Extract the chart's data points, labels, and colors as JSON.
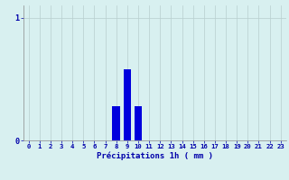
{
  "hours": [
    0,
    1,
    2,
    3,
    4,
    5,
    6,
    7,
    8,
    9,
    10,
    11,
    12,
    13,
    14,
    15,
    16,
    17,
    18,
    19,
    20,
    21,
    22,
    23
  ],
  "values": [
    0,
    0,
    0,
    0,
    0,
    0,
    0,
    0,
    0.28,
    0.58,
    0.28,
    0,
    0,
    0,
    0,
    0,
    0,
    0,
    0,
    0,
    0,
    0,
    0,
    0
  ],
  "bar_color": "#0000dd",
  "background_color": "#d8f0f0",
  "grid_color": "#b8cece",
  "axis_color": "#0000aa",
  "xlabel": "Précipitations 1h ( mm )",
  "xlabel_fontsize": 6.5,
  "tick_fontsize": 5.2,
  "ytick_labels": [
    "0",
    "1"
  ],
  "ytick_values": [
    0,
    1
  ],
  "ylim": [
    0,
    1.1
  ],
  "xlim": [
    -0.5,
    23.5
  ]
}
